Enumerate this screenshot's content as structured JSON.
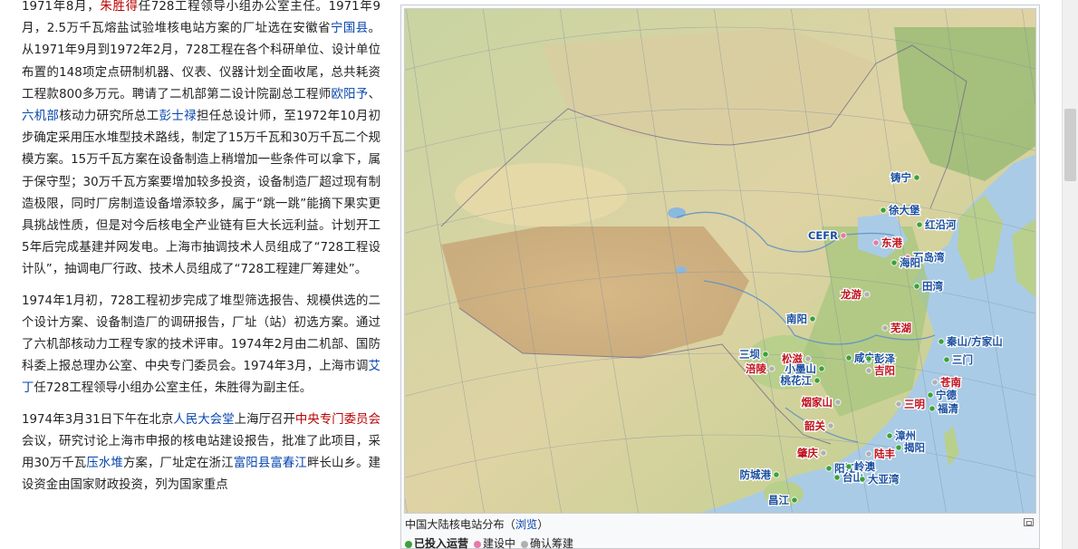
{
  "article": {
    "p1": [
      {
        "t": "1971年8月，"
      },
      {
        "t": "朱胜得",
        "link": "red"
      },
      {
        "t": "任728工程领导小组办公室主任。1971年9月，2.5万千瓦熔盐试验堆核电站方案的厂址选在安徽省"
      },
      {
        "t": "宁国县",
        "link": "blue"
      },
      {
        "t": "。从1971年9月到1972年2月，728工程在各个科研单位、设计单位布置的148项定点研制机器、仪表、仪器计划全面收尾，总共耗资工程款800多万元。聘请了二机部第二设计院副总工程师"
      },
      {
        "t": "欧阳予",
        "link": "blue"
      },
      {
        "t": "、"
      },
      {
        "t": "六机部",
        "link": "blue"
      },
      {
        "t": "核动力研究所总工"
      },
      {
        "t": "彭士禄",
        "link": "blue"
      },
      {
        "t": "担任总设计师，至1972年10月初步确定采用压水堆型技术路线，制定了15万千瓦和30万千瓦二个规模方案。15万千瓦方案在设备制造上稍增加一些条件可以拿下，属于保守型；30万千瓦方案要增加较多投资，设备制造厂超过现有制造极限，同时厂房制造设备增添较多，属于“跳一跳”能摘下果实更具挑战性质，但是对今后核电全产业链有巨大长远利益。计划开工5年后完成基建并网发电。上海市抽调技术人员组成了“728工程设计队”，抽调电厂行政、技术人员组成了“728工程建厂筹建处”。"
      }
    ],
    "p2": [
      {
        "t": "1974年1月初，728工程初步完成了堆型筛选报告、规模供选的二个设计方案、设备制造厂的调研报告，厂址（站）初选方案。通过了六机部核动力工程专家的技术评审。1974年2月由二机部、国防科委上报总理办公室、中央专门委员会。1974年3月，上海市调"
      },
      {
        "t": "艾丁",
        "link": "blue"
      },
      {
        "t": "任728工程领导小组办公室主任，朱胜得为副主任。"
      }
    ],
    "p3": [
      {
        "t": "1974年3月31日下午在北京"
      },
      {
        "t": "人民大会堂",
        "link": "blue"
      },
      {
        "t": "上海厅召开"
      },
      {
        "t": "中央专门委员会",
        "link": "red"
      },
      {
        "t": "会议，研究讨论上海市申报的核电站建设报告，批准了此项目，采用30万千瓦"
      },
      {
        "t": "压水堆",
        "link": "blue"
      },
      {
        "t": "方案，厂址定在浙江"
      },
      {
        "t": "富阳县",
        "link": "blue"
      },
      {
        "t": "富春江",
        "link": "blue"
      },
      {
        "t": "畔长山乡。建设资金由国家财政投资，列为国家重点"
      }
    ]
  },
  "figure": {
    "caption": "中国大陆核电站分布（",
    "caption_link": "浏览",
    "caption_end": "）",
    "legend": [
      {
        "label": "已投入运营",
        "color": "#3aa23a"
      },
      {
        "label": "建设中",
        "color": "#e879a8"
      },
      {
        "label": "确认筹建",
        "color": "#b0b0b0"
      }
    ]
  },
  "plants": [
    {
      "name": "铸宁",
      "c": "blue"
    },
    {
      "name": "徐大堡",
      "c": "blue"
    },
    {
      "name": "红沿河",
      "c": "blue"
    },
    {
      "name": "CEFR",
      "c": "blue"
    },
    {
      "name": "东港",
      "c": "red"
    },
    {
      "name": "石岛湾",
      "c": "blue"
    },
    {
      "name": "海阳",
      "c": "blue"
    },
    {
      "name": "田湾",
      "c": "blue"
    },
    {
      "name": "龙游",
      "c": "red"
    },
    {
      "name": "南阳",
      "c": "blue"
    },
    {
      "name": "芜湖",
      "c": "red"
    },
    {
      "name": "秦山/方家山",
      "c": "blue"
    },
    {
      "name": "三门",
      "c": "blue"
    },
    {
      "name": "三坝",
      "c": "blue"
    },
    {
      "name": "松滋",
      "c": "red"
    },
    {
      "name": "咸宁",
      "c": "blue"
    },
    {
      "name": "彭泽",
      "c": "blue"
    },
    {
      "name": "涪陵",
      "c": "red"
    },
    {
      "name": "小墨山",
      "c": "blue"
    },
    {
      "name": "吉阳",
      "c": "red"
    },
    {
      "name": "桃花江",
      "c": "blue"
    },
    {
      "name": "苍南",
      "c": "red"
    },
    {
      "name": "宁德",
      "c": "blue"
    },
    {
      "name": "烟家山",
      "c": "red"
    },
    {
      "name": "三明",
      "c": "red"
    },
    {
      "name": "福清",
      "c": "blue"
    },
    {
      "name": "韶关",
      "c": "red"
    },
    {
      "name": "漳州",
      "c": "blue"
    },
    {
      "name": "揭阳",
      "c": "blue"
    },
    {
      "name": "肇庆",
      "c": "red"
    },
    {
      "name": "陆丰",
      "c": "red"
    },
    {
      "name": "防城港",
      "c": "blue"
    },
    {
      "name": "阳江",
      "c": "blue"
    },
    {
      "name": "岭澳",
      "c": "blue"
    },
    {
      "name": "台山",
      "c": "blue"
    },
    {
      "name": "大亚湾",
      "c": "blue"
    },
    {
      "name": "昌江",
      "c": "blue"
    }
  ]
}
